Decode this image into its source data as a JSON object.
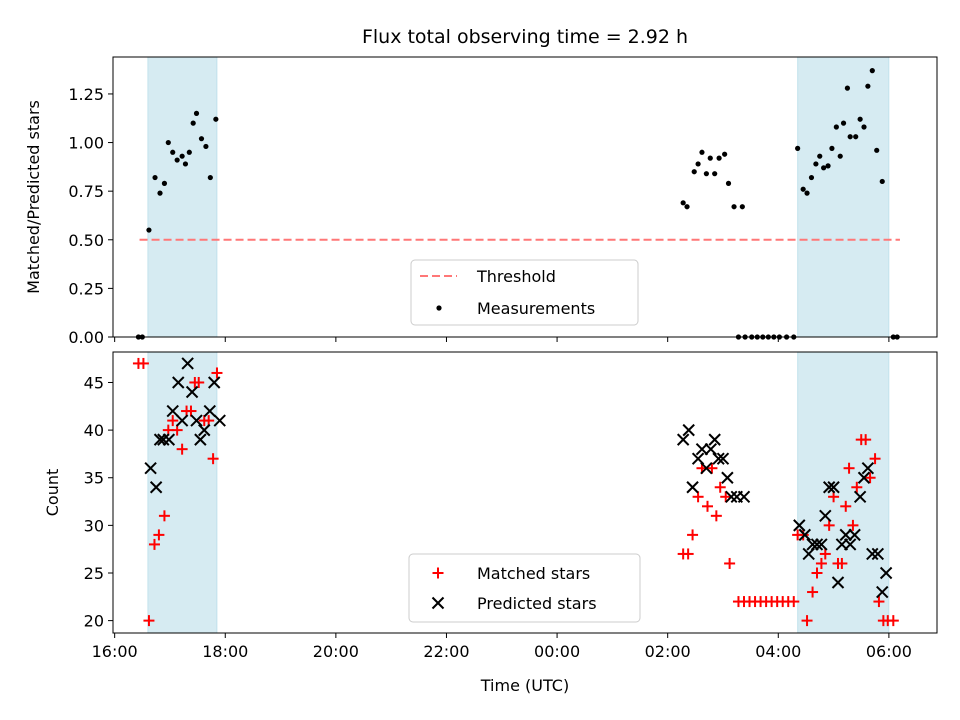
{
  "chart_data": {
    "type": "scatter",
    "title": "Flux total observing time = 2.92 h",
    "xlabel": "Time (UTC)",
    "x_tick_labels": [
      "16:00",
      "18:00",
      "20:00",
      "22:00",
      "00:00",
      "02:00",
      "04:00",
      "06:00"
    ],
    "x_tick_hours": [
      16,
      18,
      20,
      22,
      24,
      26,
      28,
      30
    ],
    "x_range_hours": [
      15.97,
      30.87
    ],
    "shaded_intervals_hours": [
      [
        16.6,
        17.85
      ],
      [
        28.35,
        30.0
      ]
    ],
    "shade_color": "#add8e6",
    "panels": [
      {
        "name": "ratio",
        "ylabel": "Matched/Predicted stars",
        "ylim": [
          0.0,
          1.44
        ],
        "y_ticks": [
          "0.00",
          "0.25",
          "0.50",
          "0.75",
          "1.00",
          "1.25"
        ],
        "y_tick_values": [
          0.0,
          0.25,
          0.5,
          0.75,
          1.0,
          1.25
        ],
        "threshold": {
          "label": "Threshold",
          "value": 0.5,
          "x_from": 16.45,
          "x_to": 30.2,
          "color": "#ff7777"
        },
        "measurements": {
          "label": "Measurements",
          "color": "#000000",
          "points": [
            [
              16.43,
              0.0
            ],
            [
              16.5,
              0.0
            ],
            [
              16.62,
              0.55
            ],
            [
              16.73,
              0.82
            ],
            [
              16.82,
              0.74
            ],
            [
              16.9,
              0.79
            ],
            [
              16.97,
              1.0
            ],
            [
              17.05,
              0.95
            ],
            [
              17.13,
              0.91
            ],
            [
              17.22,
              0.93
            ],
            [
              17.28,
              0.89
            ],
            [
              17.35,
              0.95
            ],
            [
              17.42,
              1.1
            ],
            [
              17.48,
              1.15
            ],
            [
              17.57,
              1.02
            ],
            [
              17.65,
              0.98
            ],
            [
              17.73,
              0.82
            ],
            [
              17.83,
              1.12
            ],
            [
              26.28,
              0.69
            ],
            [
              26.35,
              0.67
            ],
            [
              26.48,
              0.85
            ],
            [
              26.55,
              0.89
            ],
            [
              26.62,
              0.95
            ],
            [
              26.7,
              0.84
            ],
            [
              26.77,
              0.92
            ],
            [
              26.85,
              0.84
            ],
            [
              26.93,
              0.92
            ],
            [
              27.03,
              0.94
            ],
            [
              27.1,
              0.79
            ],
            [
              27.2,
              0.67
            ],
            [
              27.35,
              0.67
            ],
            [
              27.28,
              0.0
            ],
            [
              27.4,
              0.0
            ],
            [
              27.52,
              0.0
            ],
            [
              27.62,
              0.0
            ],
            [
              27.72,
              0.0
            ],
            [
              27.82,
              0.0
            ],
            [
              27.92,
              0.0
            ],
            [
              28.02,
              0.0
            ],
            [
              28.15,
              0.0
            ],
            [
              28.28,
              0.0
            ],
            [
              28.35,
              0.97
            ],
            [
              28.45,
              0.76
            ],
            [
              28.52,
              0.74
            ],
            [
              28.6,
              0.82
            ],
            [
              28.68,
              0.89
            ],
            [
              28.75,
              0.93
            ],
            [
              28.82,
              0.87
            ],
            [
              28.9,
              0.88
            ],
            [
              28.97,
              0.97
            ],
            [
              29.05,
              1.08
            ],
            [
              29.12,
              0.93
            ],
            [
              29.18,
              1.1
            ],
            [
              29.25,
              1.28
            ],
            [
              29.3,
              1.03
            ],
            [
              29.4,
              1.03
            ],
            [
              29.48,
              1.12
            ],
            [
              29.55,
              1.08
            ],
            [
              29.62,
              1.29
            ],
            [
              29.7,
              1.37
            ],
            [
              29.78,
              0.96
            ],
            [
              29.88,
              0.8
            ],
            [
              30.08,
              0.0
            ],
            [
              30.15,
              0.0
            ]
          ]
        },
        "legend_location": "lower center"
      },
      {
        "name": "counts",
        "ylabel": "Count",
        "ylim": [
          18.7,
          48.2
        ],
        "y_ticks": [
          "20",
          "25",
          "30",
          "35",
          "40",
          "45"
        ],
        "y_tick_values": [
          20,
          25,
          30,
          35,
          40,
          45
        ],
        "matched": {
          "label": "Matched stars",
          "color": "#ff0000",
          "points": [
            [
              16.43,
              47
            ],
            [
              16.52,
              47
            ],
            [
              16.62,
              20
            ],
            [
              16.72,
              28
            ],
            [
              16.8,
              29
            ],
            [
              16.9,
              31
            ],
            [
              16.97,
              40
            ],
            [
              17.05,
              41
            ],
            [
              17.13,
              40
            ],
            [
              17.22,
              38
            ],
            [
              17.3,
              42
            ],
            [
              17.38,
              42
            ],
            [
              17.45,
              45
            ],
            [
              17.52,
              45
            ],
            [
              17.62,
              41
            ],
            [
              17.7,
              41
            ],
            [
              17.78,
              37
            ],
            [
              17.85,
              46
            ],
            [
              26.28,
              27
            ],
            [
              26.37,
              27
            ],
            [
              26.45,
              29
            ],
            [
              26.55,
              33
            ],
            [
              26.62,
              36
            ],
            [
              26.72,
              32
            ],
            [
              26.8,
              36
            ],
            [
              26.88,
              31
            ],
            [
              26.95,
              34
            ],
            [
              27.05,
              33
            ],
            [
              27.12,
              26
            ],
            [
              27.28,
              22
            ],
            [
              27.38,
              22
            ],
            [
              27.48,
              22
            ],
            [
              27.58,
              22
            ],
            [
              27.68,
              22
            ],
            [
              27.78,
              22
            ],
            [
              27.88,
              22
            ],
            [
              27.98,
              22
            ],
            [
              28.08,
              22
            ],
            [
              28.18,
              22
            ],
            [
              28.28,
              22
            ],
            [
              28.35,
              29
            ],
            [
              28.45,
              29
            ],
            [
              28.52,
              20
            ],
            [
              28.62,
              23
            ],
            [
              28.7,
              25
            ],
            [
              28.78,
              26
            ],
            [
              28.85,
              27
            ],
            [
              28.92,
              30
            ],
            [
              29.0,
              33
            ],
            [
              29.08,
              26
            ],
            [
              29.15,
              26
            ],
            [
              29.22,
              32
            ],
            [
              29.28,
              36
            ],
            [
              29.35,
              30
            ],
            [
              29.42,
              34
            ],
            [
              29.5,
              39
            ],
            [
              29.58,
              39
            ],
            [
              29.66,
              35
            ],
            [
              29.75,
              37
            ],
            [
              29.82,
              22
            ],
            [
              29.9,
              20
            ],
            [
              29.98,
              20
            ],
            [
              30.08,
              20
            ]
          ]
        },
        "predicted": {
          "label": "Predicted stars",
          "color": "#000000",
          "points": [
            [
              16.65,
              36
            ],
            [
              16.75,
              34
            ],
            [
              16.82,
              39
            ],
            [
              16.88,
              39
            ],
            [
              16.98,
              39
            ],
            [
              17.05,
              42
            ],
            [
              17.15,
              45
            ],
            [
              17.22,
              41
            ],
            [
              17.32,
              47
            ],
            [
              17.4,
              44
            ],
            [
              17.48,
              41
            ],
            [
              17.55,
              39
            ],
            [
              17.62,
              40
            ],
            [
              17.72,
              42
            ],
            [
              17.8,
              45
            ],
            [
              17.9,
              41
            ],
            [
              26.28,
              39
            ],
            [
              26.38,
              40
            ],
            [
              26.45,
              34
            ],
            [
              26.55,
              37
            ],
            [
              26.62,
              38
            ],
            [
              26.7,
              36
            ],
            [
              26.78,
              38
            ],
            [
              26.85,
              39
            ],
            [
              26.92,
              37
            ],
            [
              27.0,
              37
            ],
            [
              27.08,
              35
            ],
            [
              27.15,
              33
            ],
            [
              27.25,
              33
            ],
            [
              27.38,
              33
            ],
            [
              28.38,
              30
            ],
            [
              28.48,
              29
            ],
            [
              28.55,
              27
            ],
            [
              28.62,
              28
            ],
            [
              28.7,
              28
            ],
            [
              28.78,
              28
            ],
            [
              28.85,
              31
            ],
            [
              28.92,
              34
            ],
            [
              29.0,
              34
            ],
            [
              29.08,
              24
            ],
            [
              29.15,
              28
            ],
            [
              29.22,
              29
            ],
            [
              29.3,
              28
            ],
            [
              29.38,
              29
            ],
            [
              29.48,
              33
            ],
            [
              29.55,
              35
            ],
            [
              29.62,
              36
            ],
            [
              29.7,
              27
            ],
            [
              29.8,
              27
            ],
            [
              29.88,
              23
            ],
            [
              29.95,
              25
            ]
          ]
        },
        "legend_location": "lower center"
      }
    ]
  }
}
